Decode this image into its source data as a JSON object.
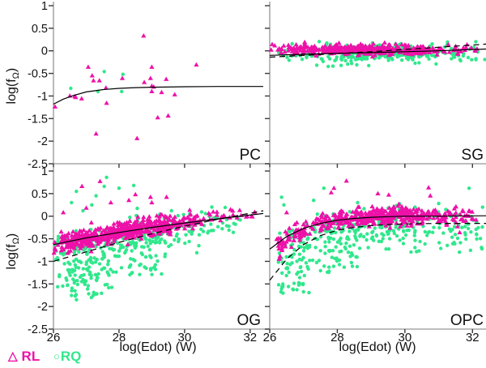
{
  "figure": {
    "background": "#ffffff",
    "axis_color": "#a8a8a8",
    "tick_color": "#3a3a3a",
    "text_color": "#111111"
  },
  "chart_data": {
    "type": "scatter",
    "title": "",
    "xlabel": "log(Edot) (W)",
    "ylabel": "log(f_Ω)",
    "ylabel_parts": {
      "pre": "log(f",
      "sub": "Ω",
      "post": ")"
    },
    "xlim": [
      26,
      32.4
    ],
    "ylim": [
      -2.5,
      1
    ],
    "xticks": [
      26,
      28,
      30,
      32
    ],
    "xtick_labels": [
      "26",
      "28",
      "30",
      "32"
    ],
    "yticks": [
      1,
      0.5,
      0,
      -0.5,
      -1,
      -1.5,
      -2,
      -2.5
    ],
    "ytick_labels": [
      "1",
      "0.5",
      "0",
      "-0.5",
      "-1",
      "-1.5",
      "-2",
      "-2.5"
    ],
    "grid": false,
    "legend_position": "bottom-left",
    "legend": [
      {
        "glyph": "△",
        "label": "RL",
        "color": "#ee11a8",
        "marker": "triangle"
      },
      {
        "glyph": "○",
        "label": "RQ",
        "color": "#30e88c",
        "marker": "circle"
      }
    ],
    "colors": {
      "rl": "#ee11a8",
      "rq": "#30e88c",
      "curve": "#000000"
    },
    "panels": [
      {
        "label": "PC",
        "row": 0,
        "col": 0,
        "seed": 101,
        "curves": {
          "solid": [
            [
              26,
              -1.18
            ],
            [
              26.3,
              -1.07
            ],
            [
              26.6,
              -0.99
            ],
            [
              27,
              -0.91
            ],
            [
              27.5,
              -0.86
            ],
            [
              28,
              -0.83
            ],
            [
              28.5,
              -0.815
            ],
            [
              29,
              -0.805
            ],
            [
              30,
              -0.795
            ],
            [
              31,
              -0.79
            ],
            [
              32.4,
              -0.79
            ]
          ]
        },
        "points": {
          "rl": [
            [
              26.05,
              -1.24
            ],
            [
              26.5,
              -1.0
            ],
            [
              26.65,
              -1.01
            ],
            [
              26.68,
              -1.03
            ],
            [
              26.86,
              -1.06
            ],
            [
              27.06,
              -0.36
            ],
            [
              27.18,
              -0.55
            ],
            [
              27.22,
              -0.66
            ],
            [
              27.4,
              -0.66
            ],
            [
              27.3,
              -1.84
            ],
            [
              27.6,
              -0.82
            ],
            [
              27.62,
              -1.16
            ],
            [
              28.1,
              -0.61
            ],
            [
              28.55,
              -1.94
            ],
            [
              28.75,
              0.33
            ],
            [
              28.77,
              -0.7
            ],
            [
              29.0,
              -0.36
            ],
            [
              28.96,
              -0.61
            ],
            [
              29.0,
              -0.78
            ],
            [
              29.06,
              -0.8
            ],
            [
              29.0,
              -0.9
            ],
            [
              29.3,
              -0.92
            ],
            [
              29.18,
              -1.48
            ],
            [
              29.5,
              -1.44
            ],
            [
              29.44,
              -0.63
            ],
            [
              29.7,
              -0.97
            ],
            [
              30.36,
              -0.31
            ]
          ],
          "rq": [
            [
              26.53,
              -0.83
            ],
            [
              27.55,
              -0.46
            ],
            [
              27.36,
              -0.9
            ],
            [
              28.08,
              -0.9
            ],
            [
              28.12,
              -0.52
            ]
          ]
        },
        "clusters": []
      },
      {
        "label": "SG",
        "row": 0,
        "col": 1,
        "seed": 202,
        "curves": {
          "solid": [
            [
              26,
              -0.1
            ],
            [
              27,
              -0.075
            ],
            [
              28,
              -0.055
            ],
            [
              29,
              -0.04
            ],
            [
              30,
              -0.02
            ],
            [
              31,
              0.0
            ],
            [
              32.4,
              0.04
            ]
          ],
          "dashed": [
            [
              26,
              -0.14
            ],
            [
              27,
              -0.1
            ],
            [
              28,
              -0.06
            ],
            [
              29,
              -0.02
            ],
            [
              30,
              0.03
            ],
            [
              31,
              0.08
            ],
            [
              32.4,
              0.15
            ]
          ]
        },
        "points": {
          "rl": [],
          "rq": []
        },
        "clusters": [
          {
            "m": "rq",
            "n": 300,
            "x": [
              26.05,
              32.35
            ],
            "xd": "c",
            "y": {
              "mode": "flat",
              "base": -0.05,
              "sig": 0.1,
              "min": -0.34,
              "max": 0.22
            }
          },
          {
            "m": "rq",
            "n": 45,
            "x": [
              26.05,
              32.4
            ],
            "xd": "u",
            "y": {
              "mode": "flat",
              "base": -0.08,
              "sig": 0.12,
              "min": -0.35,
              "max": 0.2
            }
          },
          {
            "m": "rl",
            "n": 320,
            "x": [
              26.02,
              32.2
            ],
            "xd": "c",
            "y": {
              "mode": "flat",
              "base": 0.02,
              "sig": 0.06,
              "min": -0.18,
              "max": 0.2
            }
          },
          {
            "m": "rl",
            "n": 45,
            "x": [
              26.02,
              32.4
            ],
            "xd": "u",
            "y": {
              "mode": "flat",
              "base": 0.02,
              "sig": 0.07,
              "min": -0.2,
              "max": 0.2
            }
          }
        ]
      },
      {
        "label": "OG",
        "row": 1,
        "col": 0,
        "seed": 303,
        "curves": {
          "solid": [
            [
              26,
              -0.63
            ],
            [
              27,
              -0.48
            ],
            [
              28,
              -0.36
            ],
            [
              29,
              -0.25
            ],
            [
              30,
              -0.15
            ],
            [
              31,
              -0.06
            ],
            [
              32.4,
              0.06
            ]
          ],
          "dashed": [
            [
              26,
              -1.0
            ],
            [
              27,
              -0.79
            ],
            [
              28,
              -0.58
            ],
            [
              29,
              -0.39
            ],
            [
              30,
              -0.22
            ],
            [
              31,
              -0.07
            ],
            [
              32.4,
              0.12
            ]
          ]
        },
        "points": {
          "rl": [
            [
              26.87,
              0.66
            ],
            [
              27.42,
              0.77
            ],
            [
              28.3,
              0.35
            ],
            [
              28.96,
              0.42
            ],
            [
              29.45,
              0.42
            ],
            [
              28.5,
              0.48
            ],
            [
              27.0,
              0.18
            ],
            [
              26.3,
              0.08
            ],
            [
              29.0,
              0.3
            ],
            [
              27.75,
              0.3
            ]
          ],
          "rq": [
            [
              27.55,
              0.66
            ],
            [
              27.62,
              0.86
            ],
            [
              28.0,
              0.62
            ],
            [
              27.17,
              0.25
            ],
            [
              26.55,
              0.3
            ],
            [
              28.45,
              0.68
            ],
            [
              26.9,
              0.12
            ],
            [
              29.6,
              0.12
            ],
            [
              27.3,
              0.45
            ],
            [
              26.7,
              0.55
            ]
          ]
        },
        "clusters": [
          {
            "m": "rq",
            "n": 110,
            "x": [
              26.05,
              27.7
            ],
            "xd": "u",
            "y": {
              "mode": "range",
              "min": -1.62,
              "max": -0.4
            }
          },
          {
            "m": "rq",
            "n": 45,
            "x": [
              26.4,
              27.8
            ],
            "xd": "u",
            "y": {
              "mode": "range",
              "min": -1.85,
              "max": -1.0
            }
          },
          {
            "m": "rq",
            "n": 70,
            "x": [
              27.7,
              29.3
            ],
            "xd": "u",
            "y": {
              "mode": "range",
              "min": -1.3,
              "max": -0.35
            }
          },
          {
            "m": "rq",
            "n": 160,
            "x": [
              26.0,
              32.2
            ],
            "xd": "c",
            "y": {
              "mode": "curve",
              "off": -0.08,
              "sig": 0.18,
              "min": -1.5,
              "max": 0.35
            }
          },
          {
            "m": "rq",
            "n": 12,
            "x": [
              29.3,
              30.6
            ],
            "xd": "u",
            "y": {
              "mode": "range",
              "min": -0.9,
              "max": -0.4
            }
          },
          {
            "m": "rl",
            "n": 460,
            "x": [
              26.0,
              30.6
            ],
            "xd": "c",
            "y": {
              "mode": "curve",
              "off": 0.01,
              "sig": 0.1,
              "min": -1.2,
              "max": 0.3
            }
          },
          {
            "m": "rl",
            "n": 60,
            "x": [
              26.0,
              27.2
            ],
            "xd": "u",
            "y": {
              "mode": "curve",
              "off": -0.03,
              "sig": 0.14,
              "min": -1.2,
              "max": 0.3
            }
          },
          {
            "m": "rl",
            "n": 50,
            "x": [
              29.6,
              32.2
            ],
            "xd": "u",
            "y": {
              "mode": "curve",
              "off": 0.02,
              "sig": 0.07,
              "min": -0.5,
              "max": 0.3
            }
          }
        ]
      },
      {
        "label": "OPC",
        "row": 1,
        "col": 1,
        "seed": 404,
        "curves": {
          "solid": [
            [
              26,
              -0.73
            ],
            [
              26.5,
              -0.45
            ],
            [
              27,
              -0.27
            ],
            [
              27.5,
              -0.16
            ],
            [
              28,
              -0.09
            ],
            [
              28.5,
              -0.05
            ],
            [
              29,
              -0.025
            ],
            [
              29.5,
              -0.01
            ],
            [
              30,
              0.0
            ],
            [
              31,
              0.0
            ],
            [
              32.4,
              0.01
            ]
          ],
          "dashed": [
            [
              26,
              -1.42
            ],
            [
              26.5,
              -0.95
            ],
            [
              27,
              -0.63
            ],
            [
              27.5,
              -0.43
            ],
            [
              28,
              -0.31
            ],
            [
              28.5,
              -0.25
            ],
            [
              29,
              -0.21
            ],
            [
              29.5,
              -0.185
            ],
            [
              30,
              -0.17
            ],
            [
              31,
              -0.16
            ],
            [
              32.4,
              -0.16
            ]
          ]
        },
        "points": {
          "rl": [
            [
              28.27,
              0.78
            ],
            [
              27.9,
              0.62
            ],
            [
              27.82,
              0.52
            ],
            [
              29.2,
              0.5
            ],
            [
              29.52,
              0.47
            ],
            [
              30.7,
              0.63
            ],
            [
              30.75,
              0.45
            ],
            [
              31.9,
              0.12
            ],
            [
              26.5,
              0.08
            ]
          ],
          "rq": [
            [
              27.6,
              0.62
            ],
            [
              31.9,
              0.62
            ],
            [
              27.3,
              0.35
            ],
            [
              28.6,
              0.3
            ],
            [
              26.42,
              0.25
            ],
            [
              30.3,
              0.2
            ],
            [
              31.0,
              0.28
            ],
            [
              32.3,
              0.2
            ],
            [
              26.35,
              0.42
            ]
          ]
        },
        "clusters": [
          {
            "m": "rq",
            "n": 85,
            "x": [
              26.25,
              27.2
            ],
            "xd": "u",
            "y": {
              "mode": "range",
              "min": -1.72,
              "max": -0.3
            }
          },
          {
            "m": "rq",
            "n": 75,
            "x": [
              27.2,
              28.7
            ],
            "xd": "u",
            "y": {
              "mode": "range",
              "min": -1.25,
              "max": -0.25
            }
          },
          {
            "m": "rq",
            "n": 65,
            "x": [
              28.7,
              32.3
            ],
            "xd": "u",
            "y": {
              "mode": "range",
              "min": -0.8,
              "max": -0.15
            }
          },
          {
            "m": "rq",
            "n": 170,
            "x": [
              26.3,
              32.35
            ],
            "xd": "c",
            "y": {
              "mode": "curve",
              "off": -0.12,
              "sig": 0.16,
              "min": -1.0,
              "max": 0.3
            }
          },
          {
            "m": "rl",
            "n": 440,
            "x": [
              26.2,
              32.3
            ],
            "xd": "c",
            "y": {
              "mode": "curve",
              "off": 0.01,
              "sig": 0.09,
              "min": -0.9,
              "max": 0.3
            }
          },
          {
            "m": "rl",
            "n": 40,
            "x": [
              26.2,
              27.1
            ],
            "xd": "u",
            "y": {
              "mode": "curve",
              "off": -0.02,
              "sig": 0.13,
              "min": -1.0,
              "max": 0.3
            }
          }
        ]
      }
    ]
  }
}
